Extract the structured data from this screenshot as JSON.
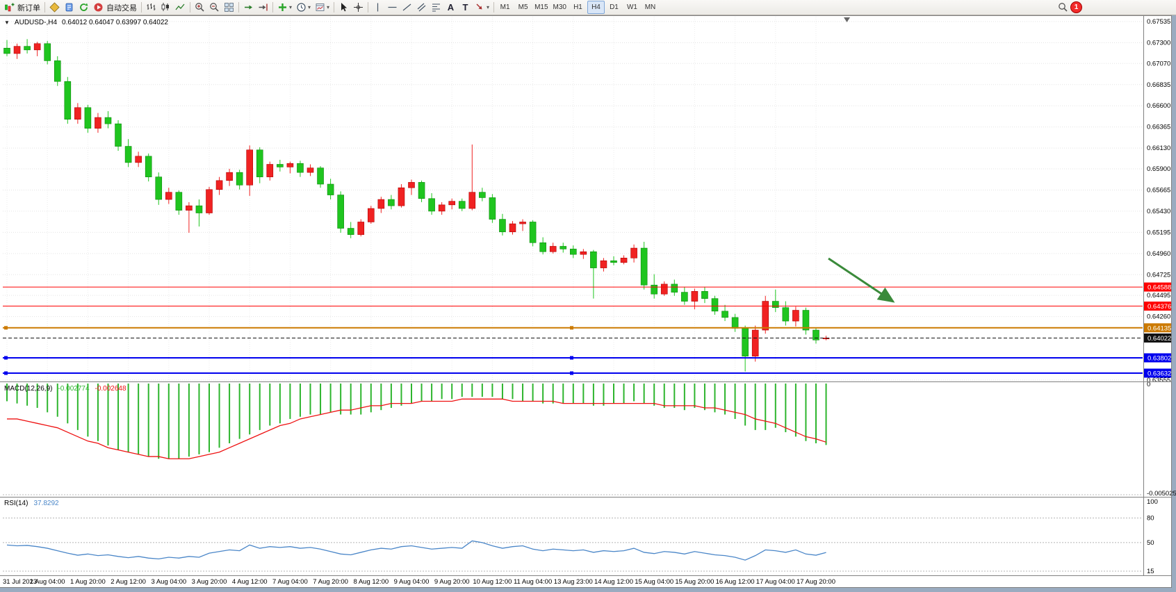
{
  "toolbar": {
    "new_order_label": "新订单",
    "auto_trading_label": "自动交易",
    "dropdown_glyph": "▾",
    "timeframes": [
      "M1",
      "M5",
      "M15",
      "M30",
      "H1",
      "H4",
      "D1",
      "W1",
      "MN"
    ],
    "active_timeframe": "H4",
    "notification_count": "1"
  },
  "chart_header": {
    "one_click_glyph": "▼",
    "symbol_title": "AUDUSD-,H4",
    "ohlc_text": "0.64012 0.64047 0.63997 0.64022"
  },
  "indicators": {
    "macd": {
      "label": "MACD(12,26,9)",
      "value_main": "-0.002774",
      "value_signal": "-0.002648",
      "axis": [
        "0",
        "-0.005025"
      ],
      "histogram_color": "#2db52d",
      "signal_color": "#ee1111"
    },
    "rsi": {
      "label": "RSI(14)",
      "value": "37.8292",
      "axis": [
        "100",
        "80",
        "50",
        "15"
      ],
      "line_color": "#4a86c8"
    }
  },
  "chart_data": {
    "type": "candlestick",
    "symbol": "AUDUSD",
    "timeframe": "H4",
    "up_color": "#f02222",
    "down_color": "#1fc51f",
    "y_range": [
      0.63555,
      0.67535
    ],
    "y_ticks": [
      "0.67535",
      "0.67300",
      "0.67070",
      "0.66835",
      "0.66600",
      "0.66365",
      "0.66130",
      "0.65900",
      "0.65665",
      "0.65430",
      "0.65195",
      "0.64960",
      "0.64725",
      "0.64495",
      "0.64260",
      "0.63555"
    ],
    "time_labels": [
      "31 Jul 2023",
      "1 Aug 04:00",
      "1 Aug 20:00",
      "2 Aug 12:00",
      "3 Aug 04:00",
      "3 Aug 20:00",
      "4 Aug 12:00",
      "7 Aug 04:00",
      "7 Aug 20:00",
      "8 Aug 12:00",
      "9 Aug 04:00",
      "9 Aug 20:00",
      "10 Aug 12:00",
      "11 Aug 04:00",
      "13 Aug 23:00",
      "14 Aug 12:00",
      "15 Aug 04:00",
      "15 Aug 20:00",
      "16 Aug 12:00",
      "17 Aug 04:00",
      "17 Aug 20:00"
    ],
    "label_every_n_bars": 4,
    "candles": [
      [
        0.6724,
        0.6733,
        0.6715,
        0.6718
      ],
      [
        0.6718,
        0.6729,
        0.6712,
        0.6726
      ],
      [
        0.6726,
        0.6734,
        0.6718,
        0.6722
      ],
      [
        0.6722,
        0.6731,
        0.6715,
        0.6729
      ],
      [
        0.6729,
        0.6732,
        0.6706,
        0.671
      ],
      [
        0.671,
        0.6715,
        0.6682,
        0.6687
      ],
      [
        0.6687,
        0.6692,
        0.664,
        0.6645
      ],
      [
        0.6645,
        0.6663,
        0.664,
        0.6658
      ],
      [
        0.6658,
        0.6661,
        0.663,
        0.6635
      ],
      [
        0.6635,
        0.6652,
        0.663,
        0.6647
      ],
      [
        0.6647,
        0.6654,
        0.6635,
        0.664
      ],
      [
        0.664,
        0.6644,
        0.661,
        0.6615
      ],
      [
        0.6615,
        0.6623,
        0.6592,
        0.6597
      ],
      [
        0.6597,
        0.6609,
        0.6592,
        0.6604
      ],
      [
        0.6604,
        0.6607,
        0.6576,
        0.6581
      ],
      [
        0.6581,
        0.6586,
        0.655,
        0.6556
      ],
      [
        0.6556,
        0.6569,
        0.6551,
        0.6564
      ],
      [
        0.6564,
        0.6566,
        0.6539,
        0.6544
      ],
      [
        0.6544,
        0.6553,
        0.6519,
        0.6549
      ],
      [
        0.6549,
        0.6556,
        0.6526,
        0.6541
      ],
      [
        0.6541,
        0.657,
        0.6539,
        0.6567
      ],
      [
        0.6567,
        0.6581,
        0.6561,
        0.6577
      ],
      [
        0.6577,
        0.659,
        0.6571,
        0.6586
      ],
      [
        0.6586,
        0.6589,
        0.6567,
        0.6572
      ],
      [
        0.6572,
        0.6616,
        0.656,
        0.6611
      ],
      [
        0.6611,
        0.6614,
        0.6574,
        0.6581
      ],
      [
        0.6581,
        0.6598,
        0.6577,
        0.6595
      ],
      [
        0.6595,
        0.66,
        0.6587,
        0.6592
      ],
      [
        0.6592,
        0.6598,
        0.6585,
        0.6596
      ],
      [
        0.6596,
        0.6599,
        0.6581,
        0.6586
      ],
      [
        0.6586,
        0.6595,
        0.6582,
        0.6591
      ],
      [
        0.6591,
        0.6593,
        0.6569,
        0.6573
      ],
      [
        0.6573,
        0.6579,
        0.6556,
        0.6561
      ],
      [
        0.6561,
        0.6565,
        0.6519,
        0.6524
      ],
      [
        0.6524,
        0.6531,
        0.6513,
        0.6517
      ],
      [
        0.6517,
        0.6534,
        0.6515,
        0.6531
      ],
      [
        0.6531,
        0.6549,
        0.6529,
        0.6546
      ],
      [
        0.6546,
        0.6559,
        0.6541,
        0.6556
      ],
      [
        0.6556,
        0.6561,
        0.6545,
        0.6549
      ],
      [
        0.6549,
        0.6573,
        0.6547,
        0.6569
      ],
      [
        0.6569,
        0.6578,
        0.6561,
        0.6575
      ],
      [
        0.6575,
        0.6577,
        0.6553,
        0.6557
      ],
      [
        0.6557,
        0.6563,
        0.6539,
        0.6543
      ],
      [
        0.6543,
        0.6553,
        0.6539,
        0.655
      ],
      [
        0.655,
        0.6557,
        0.6545,
        0.6554
      ],
      [
        0.6554,
        0.6557,
        0.6543,
        0.6546
      ],
      [
        0.6546,
        0.6617,
        0.6544,
        0.6564
      ],
      [
        0.6564,
        0.6569,
        0.6554,
        0.6558
      ],
      [
        0.6558,
        0.6562,
        0.653,
        0.6534
      ],
      [
        0.6534,
        0.654,
        0.6516,
        0.652
      ],
      [
        0.652,
        0.6532,
        0.6517,
        0.6529
      ],
      [
        0.6529,
        0.6534,
        0.6521,
        0.6531
      ],
      [
        0.6531,
        0.6533,
        0.6504,
        0.6508
      ],
      [
        0.6508,
        0.6514,
        0.6495,
        0.6498
      ],
      [
        0.6498,
        0.6508,
        0.6496,
        0.6504
      ],
      [
        0.6504,
        0.6508,
        0.6497,
        0.6501
      ],
      [
        0.6501,
        0.6505,
        0.6491,
        0.6495
      ],
      [
        0.6495,
        0.6501,
        0.649,
        0.6498
      ],
      [
        0.6498,
        0.65,
        0.6446,
        0.648
      ],
      [
        0.648,
        0.6491,
        0.6476,
        0.6488
      ],
      [
        0.6488,
        0.6493,
        0.6483,
        0.6486
      ],
      [
        0.6486,
        0.6494,
        0.6484,
        0.6491
      ],
      [
        0.6491,
        0.6506,
        0.6486,
        0.6502
      ],
      [
        0.6502,
        0.6509,
        0.6456,
        0.6461
      ],
      [
        0.6461,
        0.6473,
        0.6446,
        0.6451
      ],
      [
        0.6451,
        0.6465,
        0.6449,
        0.6462
      ],
      [
        0.6462,
        0.6467,
        0.6449,
        0.6453
      ],
      [
        0.6453,
        0.6459,
        0.6439,
        0.6443
      ],
      [
        0.6443,
        0.6457,
        0.6434,
        0.6454
      ],
      [
        0.6454,
        0.6459,
        0.6441,
        0.6446
      ],
      [
        0.6446,
        0.6449,
        0.6428,
        0.6432
      ],
      [
        0.6432,
        0.6439,
        0.6421,
        0.6425
      ],
      [
        0.6425,
        0.6429,
        0.6409,
        0.6413
      ],
      [
        0.6413,
        0.6416,
        0.6365,
        0.6382
      ],
      [
        0.6382,
        0.6416,
        0.6376,
        0.6411
      ],
      [
        0.6411,
        0.6449,
        0.6407,
        0.6443
      ],
      [
        0.6443,
        0.6456,
        0.6431,
        0.6436
      ],
      [
        0.6436,
        0.6443,
        0.6416,
        0.6421
      ],
      [
        0.6421,
        0.6437,
        0.6415,
        0.6433
      ],
      [
        0.6433,
        0.6436,
        0.6406,
        0.6411
      ],
      [
        0.6411,
        0.6414,
        0.6396,
        0.64
      ],
      [
        0.64012,
        0.64047,
        0.63997,
        0.64022
      ]
    ],
    "levels": [
      {
        "label": "0.64588",
        "value": 0.64588,
        "color": "#ff0000",
        "width": 1,
        "style": "solid",
        "handle": false
      },
      {
        "label": "0.64376",
        "value": 0.64376,
        "color": "#ff0000",
        "width": 1,
        "style": "solid",
        "handle": false
      },
      {
        "label": "0.64135",
        "value": 0.64135,
        "color": "#cc7a00",
        "width": 2,
        "style": "solid",
        "handle": true
      },
      {
        "label": "0.64022",
        "value": 0.64022,
        "color": "#111111",
        "width": 1,
        "style": "dash",
        "handle": false
      },
      {
        "label": "0.63802",
        "value": 0.63802,
        "color": "#0000ee",
        "width": 2,
        "style": "solid",
        "handle": true
      },
      {
        "label": "0.63632",
        "value": 0.63632,
        "color": "#0000ee",
        "width": 2,
        "style": "solid",
        "handle": true
      }
    ],
    "macd": {
      "params": [
        12,
        26,
        9
      ],
      "current_macd": -0.002774,
      "current_signal": -0.002648,
      "axis_min": -0.005025,
      "histogram": [
        -0.0008,
        -0.0009,
        -0.001,
        -0.0011,
        -0.0013,
        -0.0015,
        -0.0018,
        -0.0021,
        -0.0024,
        -0.0026,
        -0.0028,
        -0.003,
        -0.0031,
        -0.0032,
        -0.0033,
        -0.0034,
        -0.0034,
        -0.0034,
        -0.0033,
        -0.0032,
        -0.0031,
        -0.0029,
        -0.0027,
        -0.0025,
        -0.0023,
        -0.0021,
        -0.0019,
        -0.0018,
        -0.0016,
        -0.0015,
        -0.0014,
        -0.0014,
        -0.0013,
        -0.0014,
        -0.0014,
        -0.0014,
        -0.0013,
        -0.0012,
        -0.0011,
        -0.001,
        -0.0009,
        -0.0008,
        -0.0008,
        -0.0007,
        -0.0007,
        -0.0006,
        -0.0006,
        -0.0006,
        -0.0006,
        -0.0007,
        -0.0007,
        -0.0008,
        -0.0008,
        -0.0009,
        -0.0009,
        -0.0009,
        -0.0009,
        -0.0009,
        -0.001,
        -0.001,
        -0.0009,
        -0.0009,
        -0.0008,
        -0.0009,
        -0.001,
        -0.0011,
        -0.0011,
        -0.0012,
        -0.0011,
        -0.0012,
        -0.0013,
        -0.0014,
        -0.0016,
        -0.0019,
        -0.0021,
        -0.0021,
        -0.002,
        -0.0022,
        -0.0024,
        -0.0026,
        -0.0027,
        -0.002774
      ],
      "signal": [
        -0.0016,
        -0.0016,
        -0.0017,
        -0.0018,
        -0.0019,
        -0.002,
        -0.0022,
        -0.0024,
        -0.0026,
        -0.0027,
        -0.0029,
        -0.003,
        -0.0031,
        -0.0032,
        -0.0033,
        -0.0033,
        -0.0034,
        -0.0034,
        -0.0034,
        -0.0033,
        -0.0032,
        -0.0031,
        -0.0029,
        -0.0027,
        -0.0025,
        -0.0023,
        -0.0021,
        -0.0019,
        -0.0018,
        -0.0016,
        -0.0015,
        -0.0014,
        -0.0013,
        -0.0012,
        -0.0012,
        -0.0011,
        -0.001,
        -0.001,
        -0.0009,
        -0.0009,
        -0.0009,
        -0.0008,
        -0.0008,
        -0.0008,
        -0.0008,
        -0.0007,
        -0.0007,
        -0.0007,
        -0.0007,
        -0.0007,
        -0.0008,
        -0.0008,
        -0.0008,
        -0.0008,
        -0.0008,
        -0.0009,
        -0.0009,
        -0.0009,
        -0.0009,
        -0.0009,
        -0.0009,
        -0.0009,
        -0.0009,
        -0.0009,
        -0.0009,
        -0.001,
        -0.001,
        -0.001,
        -0.001,
        -0.0011,
        -0.0011,
        -0.0012,
        -0.0013,
        -0.0014,
        -0.0016,
        -0.0017,
        -0.0018,
        -0.002,
        -0.0022,
        -0.0024,
        -0.0025,
        -0.002648
      ]
    },
    "rsi": {
      "period": 14,
      "current": 37.8292,
      "scale": [
        15,
        100
      ],
      "level_lines": [
        80,
        50,
        15
      ],
      "values": [
        47,
        46,
        46.5,
        45,
        43,
        40,
        37,
        34.5,
        36,
        34,
        35,
        33,
        31.5,
        33,
        31,
        30,
        32,
        31,
        33,
        32,
        37,
        39,
        41,
        40,
        47,
        43,
        45,
        44,
        45,
        43,
        44,
        42,
        39,
        36,
        35,
        38,
        41,
        43,
        42,
        45,
        46,
        44,
        42,
        43,
        44,
        43,
        52,
        50,
        46,
        43,
        45,
        46,
        42,
        40,
        42,
        41,
        40,
        41,
        38,
        40,
        39,
        40,
        43,
        38,
        36.5,
        39,
        38,
        36,
        39,
        37,
        35,
        34,
        32,
        28.5,
        34,
        41,
        40,
        38,
        41,
        36,
        34.5,
        37.8292
      ]
    },
    "trend_arrow": {
      "color": "#3a8a3a",
      "from": [
        1192,
        350
      ],
      "to": [
        1285,
        412
      ]
    }
  }
}
